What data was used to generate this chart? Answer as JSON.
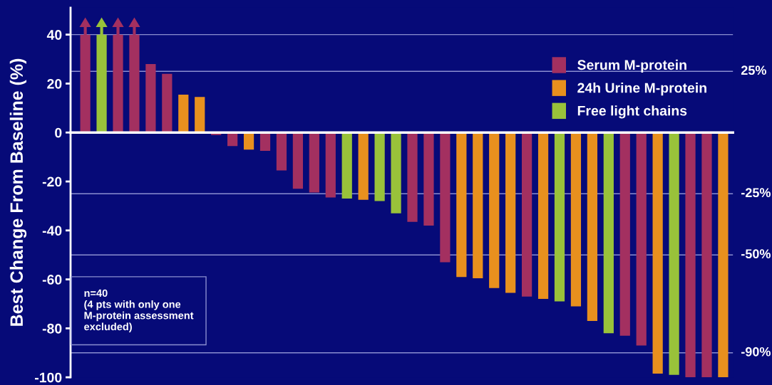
{
  "chart_data": {
    "type": "bar",
    "ylabel": "Best Change From Baseline (%)",
    "categories": [
      null,
      null,
      null,
      null,
      null,
      null,
      null,
      null,
      null,
      null,
      null,
      null,
      null,
      null,
      null,
      null,
      null,
      null,
      null,
      null,
      null,
      null,
      null,
      null,
      null,
      null,
      null,
      null,
      null,
      null,
      null,
      null,
      null,
      null,
      null,
      null,
      null,
      null,
      null,
      null
    ],
    "series": [
      {
        "name": "Serum M-protein",
        "color": "#a33060",
        "values": [
          40,
          null,
          40,
          40,
          28,
          24,
          null,
          null,
          -1,
          -5.5,
          null,
          -7.5,
          -15.5,
          -23,
          -24.5,
          -26.5,
          null,
          null,
          null,
          null,
          -36.5,
          -38,
          -53,
          null,
          null,
          null,
          null,
          -67,
          null,
          null,
          null,
          null,
          null,
          -83,
          -87,
          null,
          null,
          -100,
          -100,
          null
        ]
      },
      {
        "name": "24h Urine M-protein",
        "color": "#e8901e",
        "values": [
          null,
          null,
          null,
          null,
          null,
          null,
          15.5,
          14.5,
          null,
          null,
          -7,
          null,
          null,
          null,
          null,
          null,
          null,
          -27.5,
          null,
          null,
          null,
          null,
          null,
          -59,
          -59.5,
          -63.5,
          -65.5,
          null,
          -68,
          null,
          -71,
          -77,
          null,
          null,
          null,
          -98.5,
          null,
          null,
          null,
          -100
        ]
      },
      {
        "name": "Free light chains",
        "color": "#99c23a",
        "values": [
          null,
          40,
          null,
          null,
          null,
          null,
          null,
          null,
          null,
          null,
          null,
          null,
          null,
          null,
          null,
          null,
          -27,
          null,
          -28,
          -33,
          null,
          null,
          null,
          null,
          null,
          null,
          null,
          null,
          null,
          -69,
          null,
          null,
          -82,
          null,
          null,
          null,
          -99,
          null,
          null,
          null
        ]
      }
    ],
    "ylim": [
      -100,
      51
    ],
    "yticks": [
      -100,
      -80,
      -60,
      -40,
      -20,
      0,
      20,
      40
    ],
    "tick_labels": "y",
    "ref_lines": [
      {
        "axis": "y",
        "value": 40,
        "color": "#8a8ed0"
      },
      {
        "axis": "y",
        "value": 25,
        "label": "25%",
        "color": "#8a8ed0"
      },
      {
        "axis": "y",
        "value": -25,
        "label": "-25%",
        "color": "#8a8ed0"
      },
      {
        "axis": "y",
        "value": -50,
        "label": "-50%",
        "color": "#8a8ed0"
      },
      {
        "axis": "y",
        "value": -90,
        "label": "-90%",
        "color": "#8a8ed0"
      }
    ],
    "annotations": [
      "n=40\n(4 pts with only one\nM-protein assessment\nexcluded)"
    ],
    "legend": "top right",
    "grid": false
  }
}
